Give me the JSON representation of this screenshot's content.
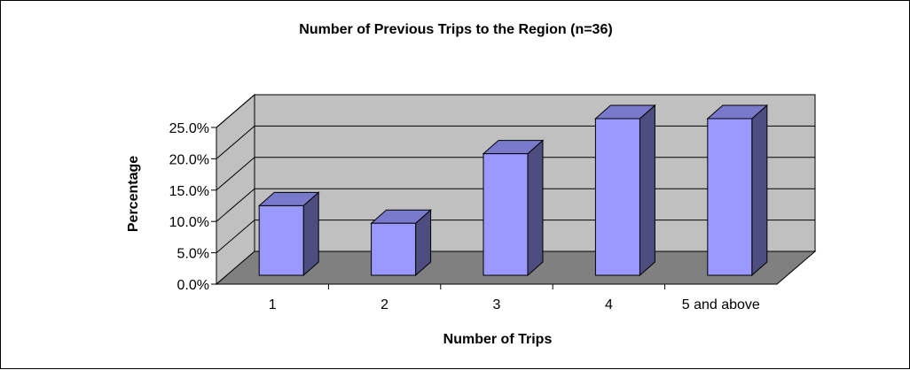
{
  "chart_data": {
    "type": "bar",
    "title": "Number of Previous Trips to the Region (n=36)",
    "xlabel": "Number of Trips",
    "ylabel": "Percentage",
    "categories": [
      "1",
      "2",
      "3",
      "4",
      "5 and above"
    ],
    "values": [
      11.1,
      8.3,
      19.4,
      25.0,
      25.0
    ],
    "ylim": [
      0,
      25
    ],
    "yticks": [
      "0.0%",
      "5.0%",
      "10.0%",
      "15.0%",
      "20.0%",
      "25.0%"
    ],
    "grid": true,
    "legend": "none",
    "colors": {
      "bar_front": "#9999FF",
      "bar_side": "#4D4D80",
      "bar_top": "#7A7ACC",
      "wall": "#C0C0C0",
      "floor": "#808080"
    }
  }
}
